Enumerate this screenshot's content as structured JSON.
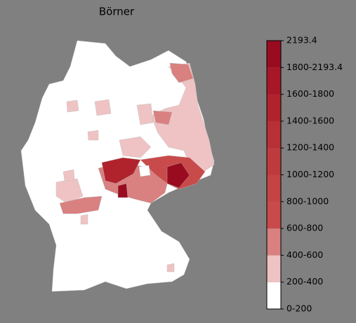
{
  "map": {
    "title": "Börner",
    "colorbar": {
      "labels": [
        "0-200",
        "200-400",
        "400-600",
        "600-800",
        "800-1000",
        "1000-1200",
        "1200-1400",
        "1400-1600",
        "1600-1800",
        "1800-2193.4",
        "2193.4"
      ],
      "colors": [
        "#ffffff",
        "#efc3c3",
        "#d98080",
        "#c94a4a",
        "#c54343",
        "#bf3a3d",
        "#b82f35",
        "#b0232d",
        "#a71727",
        "#990c1f"
      ]
    }
  }
}
